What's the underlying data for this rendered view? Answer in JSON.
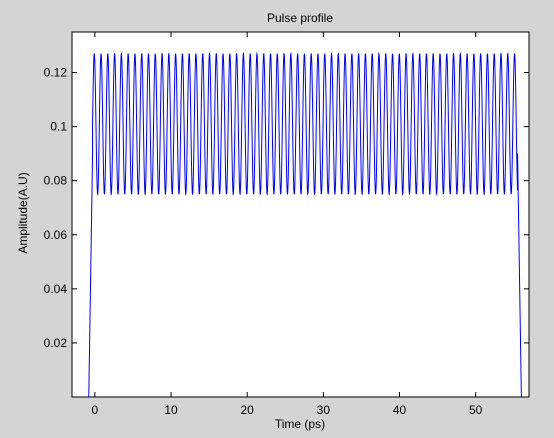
{
  "chart_data": {
    "type": "line",
    "title": "Pulse profile",
    "xlabel": "Time (ps)",
    "ylabel": "Amplitude(A.U)",
    "xlim": [
      -3,
      57
    ],
    "ylim": [
      0,
      0.135
    ],
    "x_ticks": [
      0,
      10,
      20,
      30,
      40,
      50
    ],
    "y_ticks": [
      0.02,
      0.04,
      0.06,
      0.08,
      0.1,
      0.12
    ],
    "x_tick_labels": [
      "0",
      "10",
      "20",
      "30",
      "40",
      "50"
    ],
    "y_tick_labels": [
      "0.02",
      "0.04",
      "0.06",
      "0.08",
      "0.1",
      "0.12"
    ],
    "grid": false,
    "series": [
      {
        "color": "#0000ff",
        "shape": "flat-top pulse with sinusoidal modulation",
        "rise": {
          "x": [
            -0.8,
            -0.3
          ],
          "y": [
            0.0,
            0.09
          ]
        },
        "plateau": {
          "x_start": -0.3,
          "x_end": 55.5,
          "min": 0.075,
          "max": 0.127,
          "oscillation_period_ps": 0.89
        },
        "fall": {
          "x": [
            55.5,
            56.0
          ],
          "y": [
            0.09,
            0.0
          ]
        }
      }
    ]
  }
}
